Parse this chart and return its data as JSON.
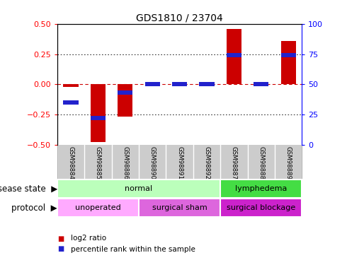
{
  "title": "GDS1810 / 23704",
  "samples": [
    "GSM98884",
    "GSM98885",
    "GSM98886",
    "GSM98890",
    "GSM98891",
    "GSM98892",
    "GSM98887",
    "GSM98888",
    "GSM98889"
  ],
  "log2_ratio": [
    -0.02,
    -0.48,
    -0.27,
    0.0,
    0.0,
    0.0,
    0.46,
    0.0,
    0.36
  ],
  "percentile": [
    35,
    22,
    43,
    50,
    50,
    50,
    74,
    50,
    74
  ],
  "ylim": [
    -0.5,
    0.5
  ],
  "bar_color": "#cc0000",
  "percentile_color": "#2222cc",
  "zero_line_color": "#cc0000",
  "disease_state_groups": [
    {
      "label": "normal",
      "start": 0,
      "end": 6,
      "color": "#bbffbb"
    },
    {
      "label": "lymphedema",
      "start": 6,
      "end": 9,
      "color": "#44dd44"
    }
  ],
  "protocol_groups": [
    {
      "label": "unoperated",
      "start": 0,
      "end": 3,
      "color": "#ffaaff"
    },
    {
      "label": "surgical sham",
      "start": 3,
      "end": 6,
      "color": "#dd66dd"
    },
    {
      "label": "surgical blockage",
      "start": 6,
      "end": 9,
      "color": "#cc22cc"
    }
  ],
  "legend_items": [
    {
      "label": "log2 ratio",
      "color": "#cc0000"
    },
    {
      "label": "percentile rank within the sample",
      "color": "#2222cc"
    }
  ],
  "yticks_left": [
    -0.5,
    -0.25,
    0.0,
    0.25,
    0.5
  ],
  "yticks_right": [
    0,
    25,
    50,
    75,
    100
  ],
  "tick_fontsize": 8,
  "title_fontsize": 10,
  "row_label_fontsize": 8,
  "side_label_fontsize": 8.5,
  "legend_fontsize": 7.5
}
